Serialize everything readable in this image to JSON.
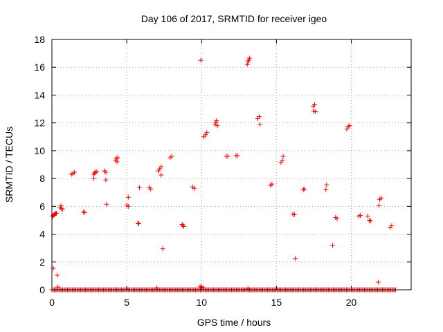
{
  "chart_data": {
    "type": "scatter",
    "title": "Day 106 of 2017, SRMTID for receiver igeo",
    "xlabel": "GPS time / hours",
    "ylabel": "SRMTID / TECUs",
    "xlim": [
      0,
      24
    ],
    "ylim": [
      0,
      18
    ],
    "xticks": [
      0,
      5,
      10,
      15,
      20
    ],
    "xtick_labels": [
      "0",
      "5",
      "10",
      "15",
      "20"
    ],
    "yticks": [
      0,
      2,
      4,
      6,
      8,
      10,
      12,
      14,
      16,
      18
    ],
    "ytick_labels": [
      "0",
      "2",
      "4",
      "6",
      "8",
      "10",
      "12",
      "14",
      "16",
      "18"
    ],
    "grid": true,
    "marker": "+",
    "color": "#ff0000",
    "series": [
      {
        "points": [
          [
            0.05,
            5.3
          ],
          [
            0.1,
            5.35
          ],
          [
            0.15,
            5.4
          ],
          [
            0.2,
            5.45
          ],
          [
            0.25,
            5.5
          ],
          [
            0.3,
            5.5
          ],
          [
            0.1,
            1.55
          ],
          [
            0.35,
            1.05
          ],
          [
            0.55,
            5.9
          ],
          [
            0.6,
            6.05
          ],
          [
            0.65,
            5.85
          ],
          [
            0.7,
            5.75
          ],
          [
            1.3,
            8.3
          ],
          [
            1.4,
            8.35
          ],
          [
            1.5,
            8.45
          ],
          [
            2.1,
            5.6
          ],
          [
            2.2,
            5.55
          ],
          [
            2.8,
            8.3
          ],
          [
            2.85,
            8.4
          ],
          [
            2.9,
            8.45
          ],
          [
            3.0,
            8.5
          ],
          [
            2.8,
            8.0
          ],
          [
            3.5,
            8.55
          ],
          [
            3.6,
            8.45
          ],
          [
            3.6,
            7.9
          ],
          [
            3.65,
            6.15
          ],
          [
            4.25,
            9.3
          ],
          [
            4.3,
            9.45
          ],
          [
            4.4,
            9.5
          ],
          [
            4.35,
            9.2
          ],
          [
            5.0,
            6.1
          ],
          [
            5.1,
            6.0
          ],
          [
            5.1,
            6.65
          ],
          [
            5.75,
            4.8
          ],
          [
            5.8,
            4.75
          ],
          [
            5.85,
            7.35
          ],
          [
            6.5,
            7.35
          ],
          [
            6.6,
            7.25
          ],
          [
            7.1,
            8.55
          ],
          [
            7.2,
            8.7
          ],
          [
            7.3,
            8.85
          ],
          [
            7.3,
            8.25
          ],
          [
            7.4,
            2.95
          ],
          [
            7.9,
            9.5
          ],
          [
            8.0,
            9.6
          ],
          [
            8.7,
            4.7
          ],
          [
            8.75,
            4.65
          ],
          [
            8.8,
            4.55
          ],
          [
            9.4,
            7.4
          ],
          [
            9.5,
            7.3
          ],
          [
            9.95,
            16.5
          ],
          [
            10.15,
            11.0
          ],
          [
            10.25,
            11.15
          ],
          [
            10.35,
            11.3
          ],
          [
            10.9,
            11.9
          ],
          [
            10.95,
            12.05
          ],
          [
            11.0,
            12.15
          ],
          [
            11.05,
            11.8
          ],
          [
            11.65,
            9.6
          ],
          [
            11.75,
            9.6
          ],
          [
            12.3,
            9.65
          ],
          [
            12.4,
            9.65
          ],
          [
            13.05,
            16.2
          ],
          [
            13.1,
            16.4
          ],
          [
            13.15,
            16.5
          ],
          [
            13.2,
            16.65
          ],
          [
            13.75,
            12.3
          ],
          [
            13.85,
            12.45
          ],
          [
            13.9,
            11.9
          ],
          [
            14.6,
            7.5
          ],
          [
            14.7,
            7.6
          ],
          [
            15.3,
            9.15
          ],
          [
            15.4,
            9.3
          ],
          [
            15.45,
            9.6
          ],
          [
            16.1,
            5.45
          ],
          [
            16.2,
            5.4
          ],
          [
            16.25,
            2.25
          ],
          [
            16.8,
            7.2
          ],
          [
            16.85,
            7.25
          ],
          [
            17.45,
            13.2
          ],
          [
            17.55,
            13.3
          ],
          [
            17.5,
            12.85
          ],
          [
            17.6,
            12.8
          ],
          [
            18.3,
            7.2
          ],
          [
            18.35,
            7.55
          ],
          [
            18.75,
            3.2
          ],
          [
            18.95,
            5.2
          ],
          [
            19.05,
            5.1
          ],
          [
            19.7,
            11.55
          ],
          [
            19.8,
            11.75
          ],
          [
            19.9,
            11.8
          ],
          [
            20.5,
            5.3
          ],
          [
            20.6,
            5.35
          ],
          [
            21.1,
            5.3
          ],
          [
            21.2,
            5.0
          ],
          [
            21.3,
            4.95
          ],
          [
            21.8,
            0.55
          ],
          [
            21.85,
            6.05
          ],
          [
            21.9,
            6.5
          ],
          [
            22.0,
            6.6
          ],
          [
            22.6,
            4.5
          ],
          [
            22.7,
            4.6
          ],
          [
            0.4,
            0.2
          ],
          [
            9.9,
            0.25
          ],
          [
            10.0,
            0.2
          ],
          [
            10.1,
            0.15
          ],
          [
            7.0,
            0.15
          ],
          [
            13.1,
            0.1
          ]
        ],
        "baseline_segments": [
          [
            0.0,
            23.0
          ]
        ],
        "baseline_value": 0.0
      }
    ]
  }
}
